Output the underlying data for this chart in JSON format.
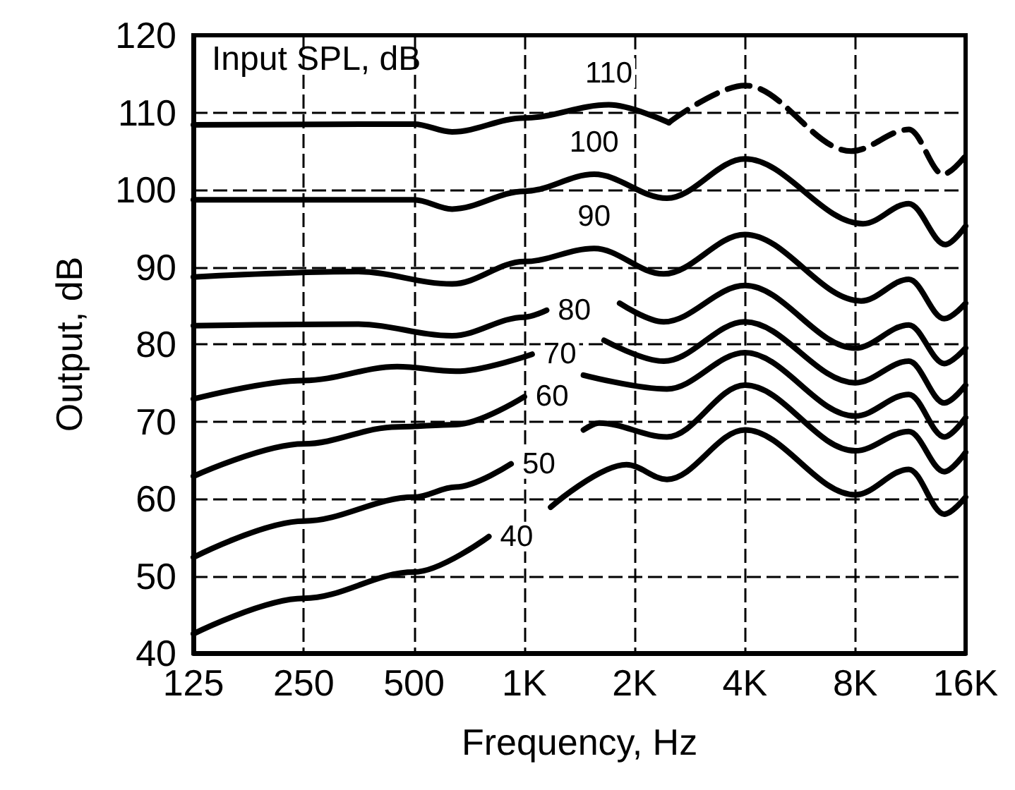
{
  "chart_data": {
    "type": "line",
    "xlabel": "Frequency, Hz",
    "ylabel": "Output, dB",
    "legend_title": "Input SPL, dB",
    "log": "x",
    "grid": true,
    "legend": false,
    "marker": "none",
    "line_style": "solid",
    "xlim": [
      125,
      16000
    ],
    "xticks": [
      125,
      250,
      500,
      {
        "value": 1000,
        "label": "1K"
      },
      {
        "value": 2000,
        "label": "2K"
      },
      {
        "value": 4000,
        "label": "4K"
      },
      {
        "value": 8000,
        "label": "8K"
      },
      {
        "value": 16000,
        "label": "16K"
      }
    ],
    "ylim": [
      40,
      120
    ],
    "yticks": [
      40,
      50,
      60,
      70,
      80,
      90,
      100,
      110,
      120
    ],
    "series": [
      {
        "name": "40",
        "color": "#000000",
        "x": [
          125,
          250,
          500,
          800,
          1000,
          1180,
          1900,
          2450,
          4000,
          8000,
          11200,
          14000,
          16000
        ],
        "values": [
          42.5,
          47.1,
          50.5,
          55.1,
          null,
          58.9,
          64.4,
          62.5,
          68.9,
          60.5,
          63.8,
          58,
          60.2
        ]
      },
      {
        "name": "50",
        "color": "#000000",
        "x": [
          125,
          250,
          500,
          650,
          920,
          1200,
          1450,
          1600,
          2450,
          4000,
          8000,
          11200,
          14000,
          16000
        ],
        "values": [
          52.4,
          57.1,
          60.2,
          61.5,
          64.5,
          null,
          68.9,
          69.8,
          68,
          74.7,
          66.2,
          68.7,
          63.5,
          66
        ]
      },
      {
        "name": "60",
        "color": "#000000",
        "x": [
          125,
          250,
          450,
          650,
          1000,
          1200,
          1450,
          2450,
          4000,
          8000,
          11200,
          14000,
          16000
        ],
        "values": [
          62.9,
          67.1,
          69.3,
          69.6,
          73.2,
          null,
          76,
          74.2,
          78.9,
          70.7,
          73.5,
          68,
          70.5
        ]
      },
      {
        "name": "70",
        "color": "#000000",
        "x": [
          125,
          250,
          450,
          650,
          1050,
          1300,
          1650,
          2400,
          4000,
          8000,
          11200,
          14000,
          16000
        ],
        "values": [
          72.9,
          75.3,
          77.1,
          76.5,
          78.7,
          null,
          80.5,
          77.8,
          82.9,
          75,
          77.8,
          72.4,
          74.7
        ]
      },
      {
        "name": "80",
        "color": "#000000",
        "x": [
          125,
          350,
          635,
          1000,
          1150,
          1400,
          1820,
          2400,
          4000,
          8000,
          11200,
          14000,
          16000
        ],
        "values": [
          82.4,
          82.6,
          81.1,
          83.5,
          84.4,
          null,
          85.3,
          82.9,
          87.6,
          79.5,
          82.5,
          77.5,
          79.5
        ]
      },
      {
        "name": "90",
        "color": "#000000",
        "x": [
          125,
          350,
          635,
          1000,
          1550,
          2400,
          4000,
          8300,
          11200,
          14000,
          16000
        ],
        "values": [
          88.7,
          89.4,
          87.8,
          90.7,
          92.4,
          89.1,
          94.2,
          85.6,
          88.4,
          83.3,
          85.3
        ]
      },
      {
        "name": "100",
        "color": "#000000",
        "x": [
          125,
          500,
          635,
          1000,
          1550,
          2450,
          4000,
          8400,
          11200,
          14100,
          16000
        ],
        "values": [
          98.7,
          98.7,
          97.5,
          99.8,
          102,
          98.9,
          104,
          95.6,
          98.2,
          92.9,
          95.3
        ]
      },
      {
        "name": "110",
        "color": "#000000",
        "x": [
          125,
          500,
          635,
          1000,
          1700,
          2480
        ],
        "values": [
          108.4,
          108.5,
          107.5,
          109.3,
          111,
          108.7
        ]
      },
      {
        "color": "#000000",
        "line_style": "dashed",
        "x": [
          2480,
          4000,
          7800,
          11200,
          13900,
          16000
        ],
        "values": [
          108.7,
          113.5,
          105,
          107.8,
          102,
          104.4
        ]
      }
    ]
  }
}
